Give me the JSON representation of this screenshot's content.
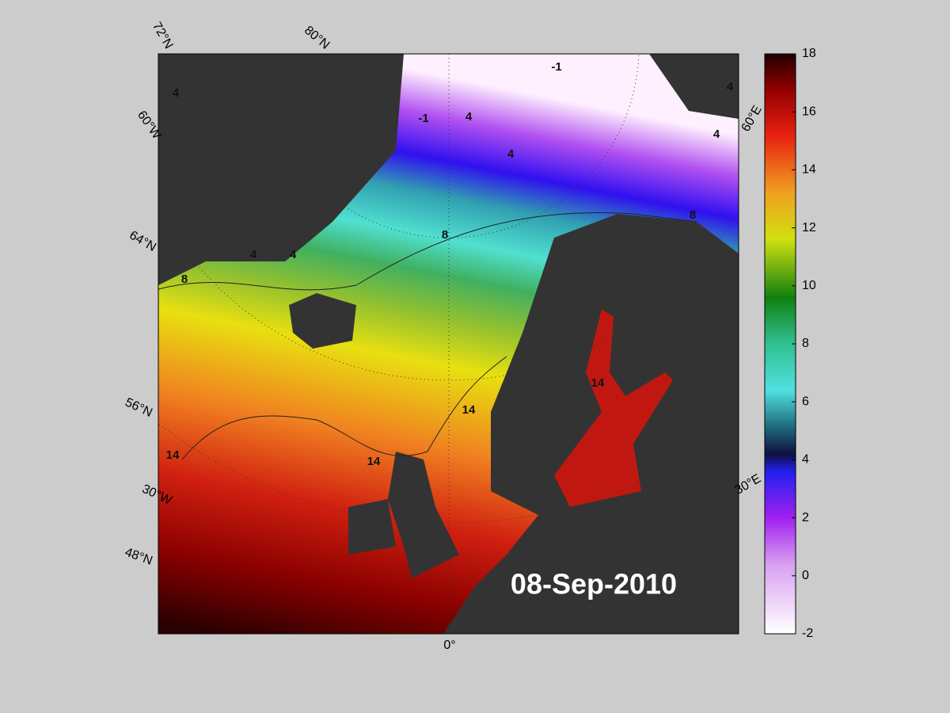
{
  "map": {
    "graticule_labels": [
      "72°N",
      "80°N",
      "60°W",
      "64°N",
      "56°N",
      "30°W",
      "48°N",
      "0°",
      "30°E",
      "60°E"
    ],
    "contour_labels": [
      "4",
      "-1",
      "4",
      "-1",
      "4",
      "4",
      "4",
      "8",
      "4",
      "4",
      "8",
      "8",
      "14",
      "14",
      "14",
      "14"
    ],
    "date": "08-Sep-2010"
  },
  "colorbar": {
    "lim": [
      -2,
      18
    ],
    "ticks": [
      -2,
      0,
      2,
      4,
      6,
      8,
      10,
      12,
      14,
      16,
      18
    ]
  }
}
